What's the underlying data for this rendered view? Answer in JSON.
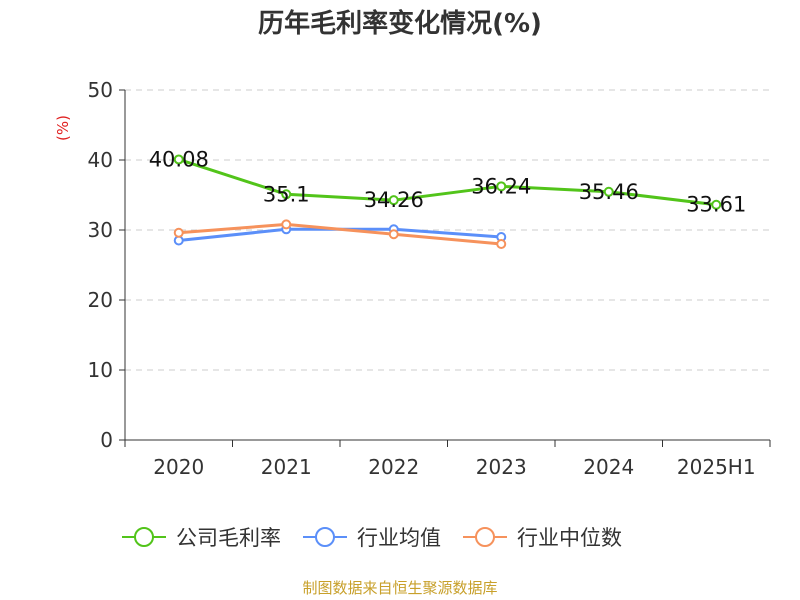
{
  "chart_data": {
    "type": "line",
    "title": "历年毛利率变化情况(%)",
    "ylabel": "(%)",
    "categories": [
      "2020",
      "2021",
      "2022",
      "2023",
      "2024",
      "2025H1"
    ],
    "ylim": [
      0,
      50
    ],
    "yticks": [
      0,
      10,
      20,
      30,
      40,
      50
    ],
    "grid": true,
    "legend_position": "bottom",
    "series": [
      {
        "name": "公司毛利率",
        "color": "#52c41a",
        "values": [
          40.08,
          35.1,
          34.26,
          36.24,
          35.46,
          33.61
        ],
        "show_labels": true
      },
      {
        "name": "行业均值",
        "color": "#5b8ff9",
        "values": [
          28.5,
          30.1,
          30.1,
          29.0,
          null,
          null
        ],
        "show_labels": false
      },
      {
        "name": "行业中位数",
        "color": "#f6925c",
        "values": [
          29.6,
          30.8,
          29.4,
          28.0,
          null,
          null
        ],
        "show_labels": false
      }
    ]
  },
  "footer": {
    "source": "制图数据来自恒生聚源数据库"
  }
}
